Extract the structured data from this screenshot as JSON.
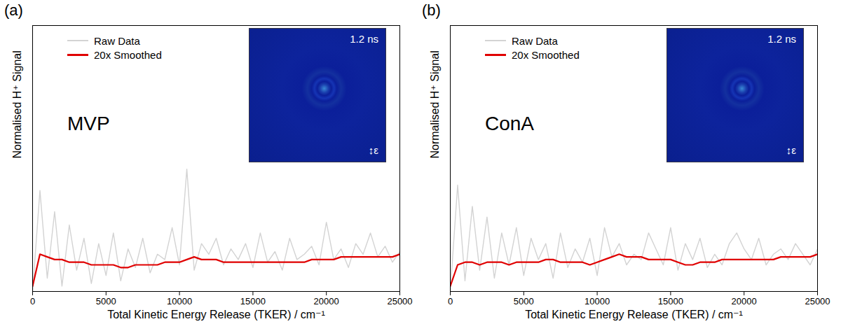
{
  "chart_data": [
    {
      "type": "line",
      "title": "(a)",
      "x_label": "Total Kinetic Energy Release (TKER) / cm⁻¹",
      "y_label": "Normalised H⁺ Signal",
      "annotations": [
        "MVP",
        "1.2 ns",
        "ε"
      ],
      "legend": "upper left",
      "tick_labels": "x",
      "xlim": [
        0,
        25000
      ],
      "xticks": [
        0,
        5000,
        10000,
        15000,
        20000,
        25000
      ],
      "ylim": [
        0,
        100
      ],
      "x": [
        0,
        500,
        1000,
        1500,
        2000,
        2500,
        3000,
        3500,
        4000,
        4500,
        5000,
        5500,
        6000,
        6500,
        7000,
        7500,
        8000,
        8500,
        9000,
        9500,
        10000,
        10500,
        11000,
        11500,
        12000,
        12500,
        13000,
        13500,
        14000,
        14500,
        15000,
        15500,
        16000,
        16500,
        17000,
        17500,
        18000,
        18500,
        19000,
        19500,
        20000,
        20500,
        21000,
        21500,
        22000,
        22500,
        23000,
        23500,
        24000,
        24500,
        25000
      ],
      "series": [
        {
          "name": "Raw Data",
          "color": "#d3d3d3",
          "values": [
            0,
            38,
            5,
            30,
            2,
            25,
            8,
            20,
            3,
            18,
            6,
            22,
            4,
            16,
            9,
            20,
            7,
            14,
            12,
            24,
            10,
            46,
            8,
            18,
            14,
            20,
            10,
            16,
            12,
            18,
            9,
            22,
            11,
            15,
            8,
            20,
            12,
            14,
            17,
            10,
            26,
            12,
            16,
            9,
            18,
            14,
            22,
            13,
            17,
            11,
            15
          ]
        },
        {
          "name": "20x Smoothed",
          "color": "#e00000",
          "values": [
            2,
            14,
            13,
            12,
            12,
            11,
            11,
            11,
            10,
            10,
            10,
            10,
            9,
            9,
            10,
            10,
            10,
            10,
            11,
            11,
            11,
            12,
            13,
            12,
            12,
            12,
            11,
            11,
            11,
            11,
            11,
            11,
            11,
            11,
            11,
            11,
            11,
            11,
            12,
            12,
            12,
            12,
            13,
            13,
            13,
            13,
            13,
            13,
            13,
            13,
            14
          ]
        }
      ]
    },
    {
      "type": "line",
      "title": "(b)",
      "x_label": "Total Kinetic Energy Release (TKER) / cm⁻¹",
      "y_label": "Normalised H⁺ Signal",
      "annotations": [
        "ConA",
        "1.2 ns",
        "ε"
      ],
      "legend": "upper left",
      "tick_labels": "x",
      "xlim": [
        0,
        25000
      ],
      "xticks": [
        0,
        5000,
        10000,
        15000,
        20000,
        25000
      ],
      "ylim": [
        0,
        100
      ],
      "x": [
        0,
        500,
        1000,
        1500,
        2000,
        2500,
        3000,
        3500,
        4000,
        4500,
        5000,
        5500,
        6000,
        6500,
        7000,
        7500,
        8000,
        8500,
        9000,
        9500,
        10000,
        10500,
        11000,
        11500,
        12000,
        12500,
        13000,
        13500,
        14000,
        14500,
        15000,
        15500,
        16000,
        16500,
        17000,
        17500,
        18000,
        18500,
        19000,
        19500,
        20000,
        20500,
        21000,
        21500,
        22000,
        22500,
        23000,
        23500,
        24000,
        24500,
        25000
      ],
      "series": [
        {
          "name": "Raw Data",
          "color": "#d3d3d3",
          "values": [
            0,
            40,
            4,
            32,
            8,
            28,
            5,
            22,
            10,
            24,
            6,
            20,
            12,
            18,
            5,
            22,
            9,
            16,
            11,
            20,
            6,
            24,
            13,
            18,
            10,
            14,
            12,
            22,
            16,
            10,
            24,
            8,
            18,
            12,
            20,
            9,
            14,
            10,
            18,
            22,
            16,
            12,
            20,
            10,
            14,
            16,
            12,
            18,
            14,
            10,
            16
          ]
        },
        {
          "name": "20x Smoothed",
          "color": "#e00000",
          "values": [
            2,
            10,
            11,
            11,
            10,
            11,
            11,
            11,
            10,
            11,
            11,
            11,
            11,
            12,
            12,
            11,
            11,
            11,
            11,
            10,
            11,
            12,
            13,
            14,
            13,
            13,
            13,
            12,
            12,
            12,
            12,
            11,
            10,
            10,
            11,
            11,
            11,
            12,
            12,
            12,
            12,
            12,
            12,
            12,
            12,
            13,
            13,
            13,
            13,
            13,
            14
          ]
        }
      ]
    }
  ]
}
